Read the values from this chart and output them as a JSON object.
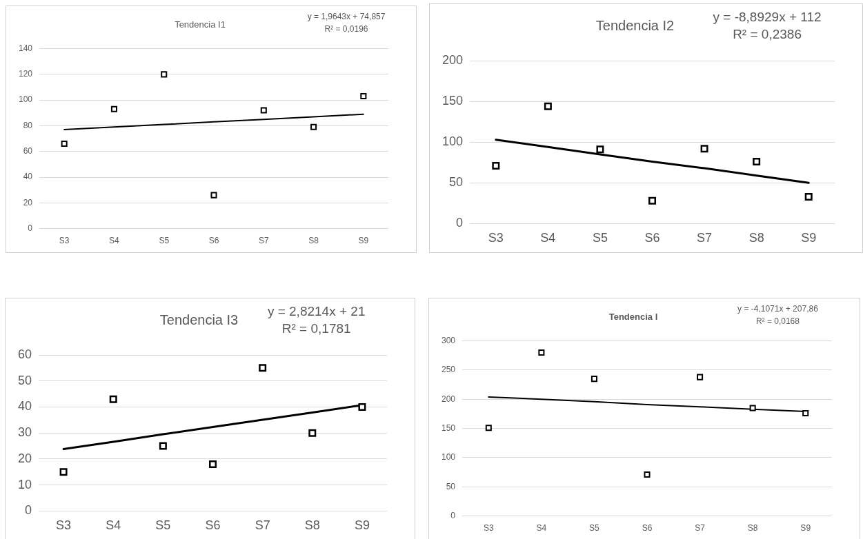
{
  "chart_data": [
    {
      "type": "scatter",
      "title": "Tendencia I1",
      "annotations": [
        "y = 1,9643x + 74,857",
        "R² = 0,0196"
      ],
      "categories": [
        "S3",
        "S4",
        "S5",
        "S6",
        "S7",
        "S8",
        "S9"
      ],
      "ylim": [
        0,
        140
      ],
      "yticks": [
        0,
        20,
        40,
        60,
        80,
        100,
        120,
        140
      ],
      "grid": "y",
      "legend": false,
      "marker": "square",
      "series": [
        {
          "type": "scatter",
          "color": "#000000",
          "values": [
            66,
            93,
            120,
            26,
            92,
            79,
            103
          ]
        },
        {
          "type": "line",
          "color": "#000000",
          "marker": "none",
          "values": [
            77,
            79,
            81,
            83,
            85,
            87,
            89
          ]
        }
      ]
    },
    {
      "type": "scatter",
      "title": "Tendencia I2",
      "annotations": [
        "y = -8,8929x + 112",
        "R² = 0,2386"
      ],
      "categories": [
        "S3",
        "S4",
        "S5",
        "S6",
        "S7",
        "S8",
        "S9"
      ],
      "ylim": [
        0,
        200
      ],
      "yticks": [
        0,
        50,
        100,
        150,
        200
      ],
      "grid": "y",
      "legend": false,
      "marker": "square",
      "series": [
        {
          "type": "scatter",
          "color": "#000000",
          "values": [
            71,
            144,
            91,
            28,
            92,
            76,
            33
          ]
        },
        {
          "type": "line",
          "color": "#000000",
          "marker": "none",
          "values": [
            103,
            94,
            85,
            76,
            68,
            59,
            50
          ]
        }
      ]
    },
    {
      "type": "scatter",
      "title": "Tendencia I3",
      "annotations": [
        "y = 2,8214x + 21",
        "R² = 0,1781"
      ],
      "categories": [
        "S3",
        "S4",
        "S5",
        "S6",
        "S7",
        "S8",
        "S9"
      ],
      "ylim": [
        0,
        60
      ],
      "yticks": [
        0,
        10,
        20,
        30,
        40,
        50,
        60
      ],
      "grid": "y",
      "legend": false,
      "marker": "square",
      "series": [
        {
          "type": "scatter",
          "color": "#000000",
          "values": [
            15,
            43,
            25,
            18,
            55,
            30,
            40
          ]
        },
        {
          "type": "line",
          "color": "#000000",
          "marker": "none",
          "values": [
            23.8,
            26.6,
            29.5,
            32.3,
            35.1,
            37.9,
            40.7
          ]
        }
      ]
    },
    {
      "type": "scatter",
      "title": "Tendencia I",
      "annotations": [
        "y = -4,1071x + 207,86",
        "R² = 0,0168"
      ],
      "categories": [
        "S3",
        "S4",
        "S5",
        "S6",
        "S7",
        "S8",
        "S9"
      ],
      "ylim": [
        0,
        300
      ],
      "yticks": [
        0,
        50,
        100,
        150,
        200,
        250,
        300
      ],
      "grid": "y",
      "legend": false,
      "marker": "square",
      "series": [
        {
          "type": "scatter",
          "color": "#000000",
          "values": [
            151,
            280,
            235,
            71,
            238,
            185,
            176
          ]
        },
        {
          "type": "line",
          "color": "#000000",
          "marker": "none",
          "values": [
            204,
            200,
            196,
            191,
            187,
            183,
            179
          ]
        }
      ]
    }
  ]
}
